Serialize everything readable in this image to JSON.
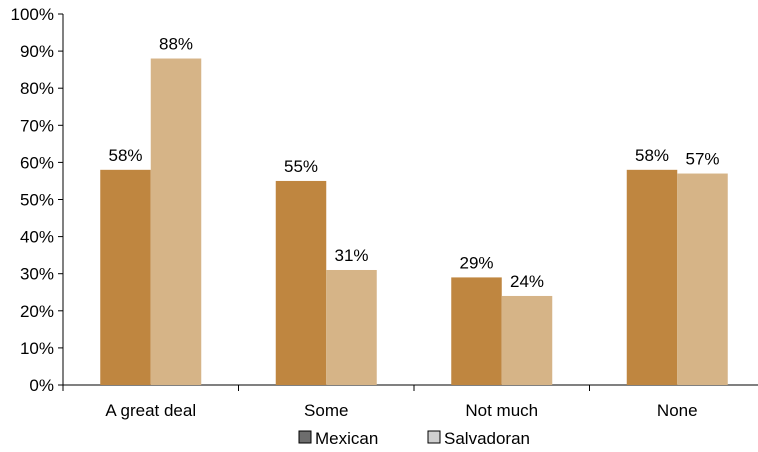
{
  "chart_data": {
    "type": "bar",
    "categories": [
      "A great deal",
      "Some",
      "Not much",
      "None"
    ],
    "series": [
      {
        "name": "Mexican",
        "values": [
          58,
          55,
          29,
          58
        ],
        "color": "#bf8640",
        "legend_swatch_color": "#6d6d6d"
      },
      {
        "name": "Salvadoran",
        "values": [
          88,
          31,
          24,
          57
        ],
        "color": "#d6b487",
        "legend_swatch_color": "#cfcfcf"
      }
    ],
    "value_suffix": "%",
    "ylim": [
      0,
      100
    ],
    "yticks": [
      0,
      10,
      20,
      30,
      40,
      50,
      60,
      70,
      80,
      90,
      100
    ],
    "ytick_labels": [
      "0%",
      "10%",
      "20%",
      "30%",
      "40%",
      "50%",
      "60%",
      "70%",
      "80%",
      "90%",
      "100%"
    ],
    "grid": false,
    "legend_position": "bottom-center",
    "title": "",
    "xlabel": "",
    "ylabel": ""
  }
}
